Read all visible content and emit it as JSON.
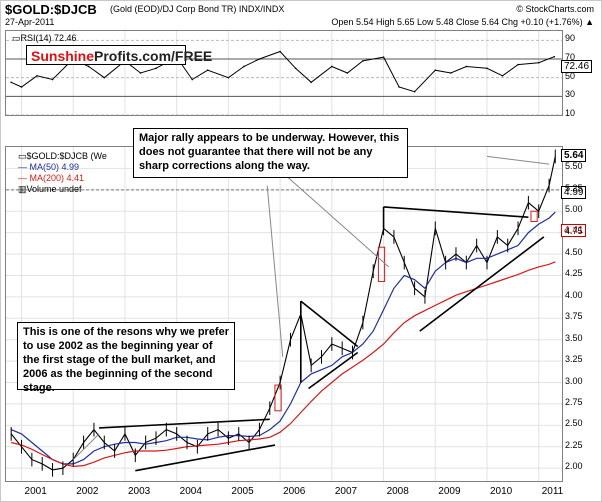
{
  "header": {
    "symbol": "$GOLD:$DJCB",
    "description": "(Gold (EOD)/DJ Corp Bond TR)  INDX/INDX",
    "credit": "© StockCharts.com",
    "date": "27-Apr-2011",
    "ohlc": "Open 5.54  High 5.65  Low 5.48  Close 5.64  Chg +0.10 (+1.76%) ▲"
  },
  "brand": {
    "part1": "Sunshine",
    "part2": "Profits.com/FREE"
  },
  "rsi_legend": "▭RSI(14) 72.46",
  "main_legend": {
    "symbol": "▭$GOLD:$DJCB (We",
    "ma50": "— MA(50) 4.99",
    "ma200": "— MA(200) 4.41",
    "volume": "▥Volume undef"
  },
  "callouts": {
    "top": "Major rally appears to be underway. However, this does not guarantee that there will not be any sharp corrections along the way.",
    "left": "This is one of the resons why we prefer to use 2002 as the beginning year of the first stage of the bull market, and 2006 as the beginning of the second stage."
  },
  "tags": {
    "close": "5.64",
    "ma50": "4.99",
    "ma200": "4.41",
    "rsi": "72.46"
  },
  "colors": {
    "price": "#000000",
    "ma50": "#1f2f9f",
    "ma200": "#d61a1a",
    "brand_red": "#dd1111"
  },
  "chart_data": [
    {
      "type": "line",
      "title": "RSI(14)",
      "ylim": [
        10,
        100
      ],
      "y_ticks": [
        90,
        70,
        50,
        30,
        10
      ],
      "x": [
        2000.8,
        2001.0,
        2001.3,
        2001.6,
        2002.0,
        2002.3,
        2002.6,
        2003.0,
        2003.3,
        2003.6,
        2004.0,
        2004.3,
        2004.6,
        2005.0,
        2005.3,
        2005.6,
        2006.0,
        2006.3,
        2006.6,
        2007.0,
        2007.3,
        2007.6,
        2008.0,
        2008.3,
        2008.6,
        2009.0,
        2009.3,
        2009.6,
        2010.0,
        2010.3,
        2010.6,
        2011.0,
        2011.3
      ],
      "series": [
        {
          "name": "RSI(14)",
          "values": [
            45,
            40,
            52,
            48,
            70,
            62,
            50,
            68,
            55,
            60,
            72,
            48,
            58,
            50,
            62,
            70,
            78,
            60,
            45,
            62,
            55,
            68,
            72,
            40,
            35,
            58,
            55,
            62,
            60,
            52,
            64,
            66,
            72.46
          ]
        }
      ]
    },
    {
      "type": "line",
      "title": "$GOLD:$DJCB",
      "ylim": [
        1.85,
        5.75
      ],
      "y_ticks": [
        2.0,
        2.25,
        2.5,
        2.75,
        3.0,
        3.25,
        3.5,
        3.75,
        4.0,
        4.25,
        4.5,
        4.75,
        5.0,
        5.25,
        5.5
      ],
      "x_labels": [
        "2001",
        "2002",
        "2003",
        "2004",
        "2005",
        "2006",
        "2007",
        "2008",
        "2009",
        "2010",
        "2011"
      ],
      "x": [
        2000.8,
        2001.0,
        2001.2,
        2001.4,
        2001.6,
        2001.8,
        2002.0,
        2002.2,
        2002.4,
        2002.6,
        2002.8,
        2003.0,
        2003.2,
        2003.4,
        2003.6,
        2003.8,
        2004.0,
        2004.2,
        2004.4,
        2004.6,
        2004.8,
        2005.0,
        2005.2,
        2005.4,
        2005.6,
        2005.8,
        2006.0,
        2006.2,
        2006.4,
        2006.6,
        2006.8,
        2007.0,
        2007.2,
        2007.4,
        2007.6,
        2007.8,
        2008.0,
        2008.2,
        2008.4,
        2008.6,
        2008.8,
        2009.0,
        2009.2,
        2009.4,
        2009.6,
        2009.8,
        2010.0,
        2010.2,
        2010.4,
        2010.6,
        2010.8,
        2011.0,
        2011.2,
        2011.32
      ],
      "series": [
        {
          "name": "$GOLD:$DJCB",
          "values": [
            2.4,
            2.25,
            2.1,
            2.05,
            1.98,
            2.0,
            2.1,
            2.3,
            2.45,
            2.3,
            2.2,
            2.4,
            2.15,
            2.3,
            2.35,
            2.45,
            2.4,
            2.3,
            2.25,
            2.4,
            2.45,
            2.35,
            2.4,
            2.3,
            2.45,
            2.7,
            3.0,
            3.5,
            3.8,
            3.2,
            3.3,
            3.45,
            3.4,
            3.35,
            3.7,
            4.3,
            4.8,
            4.7,
            4.4,
            4.1,
            4.0,
            4.8,
            4.4,
            4.5,
            4.4,
            4.6,
            4.4,
            4.7,
            4.6,
            4.8,
            5.1,
            5.0,
            5.3,
            5.64
          ]
        },
        {
          "name": "MA(50)",
          "values": [
            2.45,
            2.4,
            2.3,
            2.2,
            2.1,
            2.05,
            2.05,
            2.1,
            2.2,
            2.25,
            2.28,
            2.3,
            2.3,
            2.28,
            2.3,
            2.32,
            2.36,
            2.36,
            2.34,
            2.33,
            2.36,
            2.38,
            2.38,
            2.37,
            2.38,
            2.45,
            2.55,
            2.75,
            3.0,
            3.1,
            3.15,
            3.2,
            3.3,
            3.35,
            3.45,
            3.6,
            3.85,
            4.1,
            4.25,
            4.2,
            4.1,
            4.3,
            4.4,
            4.45,
            4.4,
            4.45,
            4.45,
            4.5,
            4.55,
            4.6,
            4.75,
            4.85,
            4.92,
            4.99
          ]
        },
        {
          "name": "MA(200)",
          "values": [
            2.3,
            2.27,
            2.22,
            2.16,
            2.1,
            2.05,
            2.02,
            2.03,
            2.07,
            2.12,
            2.15,
            2.18,
            2.2,
            2.2,
            2.2,
            2.21,
            2.23,
            2.25,
            2.26,
            2.27,
            2.28,
            2.3,
            2.32,
            2.33,
            2.34,
            2.36,
            2.42,
            2.52,
            2.65,
            2.78,
            2.9,
            3.0,
            3.1,
            3.18,
            3.26,
            3.35,
            3.45,
            3.58,
            3.7,
            3.78,
            3.84,
            3.9,
            3.96,
            4.02,
            4.06,
            4.1,
            4.14,
            4.18,
            4.22,
            4.26,
            4.31,
            4.35,
            4.38,
            4.41
          ]
        }
      ]
    }
  ]
}
